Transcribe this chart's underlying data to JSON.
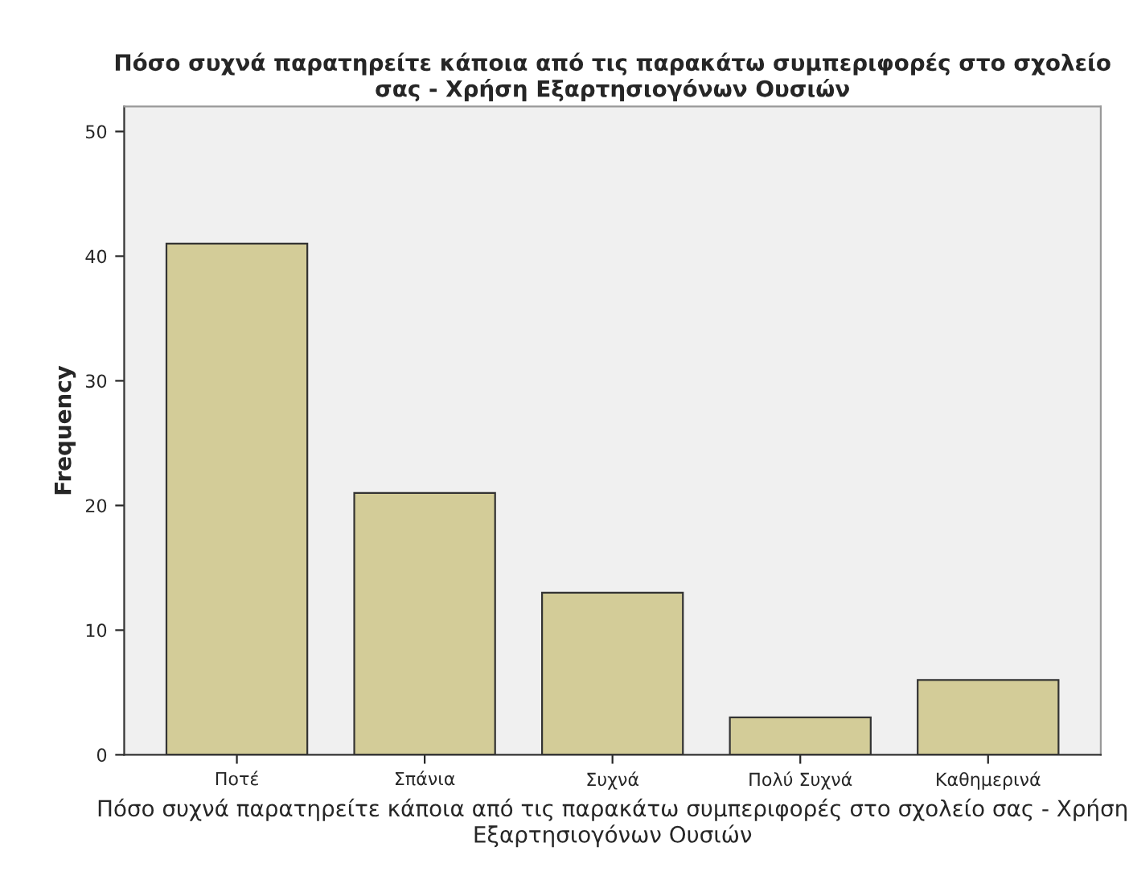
{
  "chart_data": {
    "type": "bar",
    "title": "Πόσο συχνά παρατηρείτε κάποια από τις παρακάτω συμπεριφορές στο σχολείο σας - Χρήση Εξαρτησιογόνων Ουσιών",
    "xlabel": "Πόσο συχνά παρατηρείτε κάποια από τις παρακάτω συμπεριφορές στο σχολείο σας - Χρήση Εξαρτησιογόνων Ουσιών",
    "ylabel": "Frequency",
    "categories": [
      "Ποτέ",
      "Σπάνια",
      "Συχνά",
      "Πολύ Συχνά",
      "Καθημερινά"
    ],
    "values": [
      41,
      21,
      13,
      3,
      6
    ],
    "color": "#d3cc98",
    "ylim": [
      0,
      52
    ],
    "yticks": [
      0,
      10,
      20,
      30,
      40,
      50
    ],
    "grid": false
  }
}
